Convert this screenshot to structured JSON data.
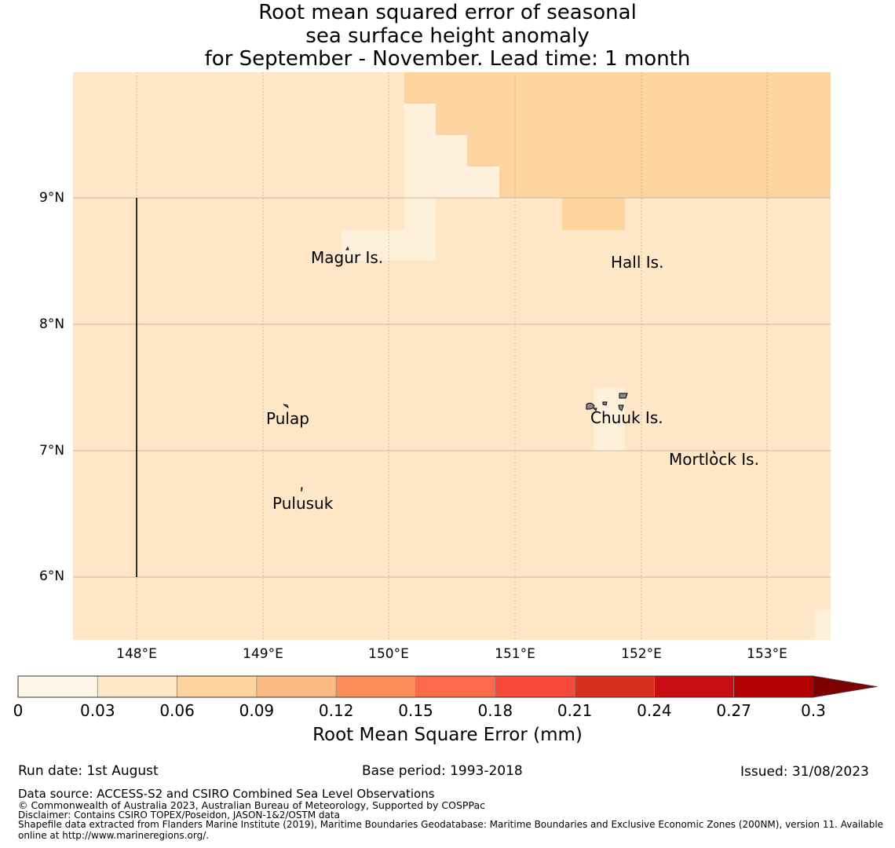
{
  "title": {
    "line1": "Root mean squared error of seasonal",
    "line2": "sea surface height anomaly",
    "line3": "for September - November. Lead time: 1 month"
  },
  "map": {
    "lat_labels": [
      "9°N",
      "8°N",
      "7°N",
      "6°N"
    ],
    "lon_labels": [
      "148°E",
      "149°E",
      "150°E",
      "151°E",
      "152°E",
      "153°E"
    ],
    "extent": {
      "lon_min": 147.5,
      "lon_max": 153.5,
      "lat_min": 5.5,
      "lat_max": 9.999
    },
    "gridlines": true,
    "field_colors": {
      "lightest": "#fff0dc",
      "light": "#fee6c6",
      "medium": "#fdd49e"
    },
    "places": {
      "magur": "Magur Is.",
      "hall": "Hall Is.",
      "pulap": "Pulap",
      "chuuk": "Chuuk Is.",
      "mortlock": "Mortlock Is.",
      "pulusuk": "Pulusuk"
    }
  },
  "colorbar": {
    "ticks": [
      "0",
      "0.03",
      "0.06",
      "0.09",
      "0.12",
      "0.15",
      "0.18",
      "0.21",
      "0.24",
      "0.27",
      "0.3"
    ],
    "colors": [
      "#fff5e6",
      "#fee6c6",
      "#fdd49e",
      "#fdbb84",
      "#fc8d59",
      "#fc6a4c",
      "#f74a3c",
      "#d7301f",
      "#c90d14",
      "#b30000",
      "#7f0000"
    ],
    "label": "Root Mean Square Error (mm)",
    "extend": "max"
  },
  "footer": {
    "run_date": "Run date: 1st August",
    "base_period": "Base period: 1993-2018",
    "issued": "Issued: 31/08/2023",
    "data_source": "Data source: ACCESS-S2 and CSIRO Combined Sea Level Observations",
    "copyright": "© Commonwealth of Australia 2023, Australian Bureau of Meteorology, Supported by COSPPac",
    "disclaimer": "Disclaimer: Contains CSIRO TOPEX/Poseidon, JASON-1&2/OSTM data",
    "shapefile1": "Shapefile data extracted from Flanders Marine Institute (2019), Maritime Boundaries Geodatabase: Maritime Boundaries and Exclusive Economic Zones (200NM), version 11. Available",
    "shapefile2": "online at http://www.marineregions.org/."
  }
}
